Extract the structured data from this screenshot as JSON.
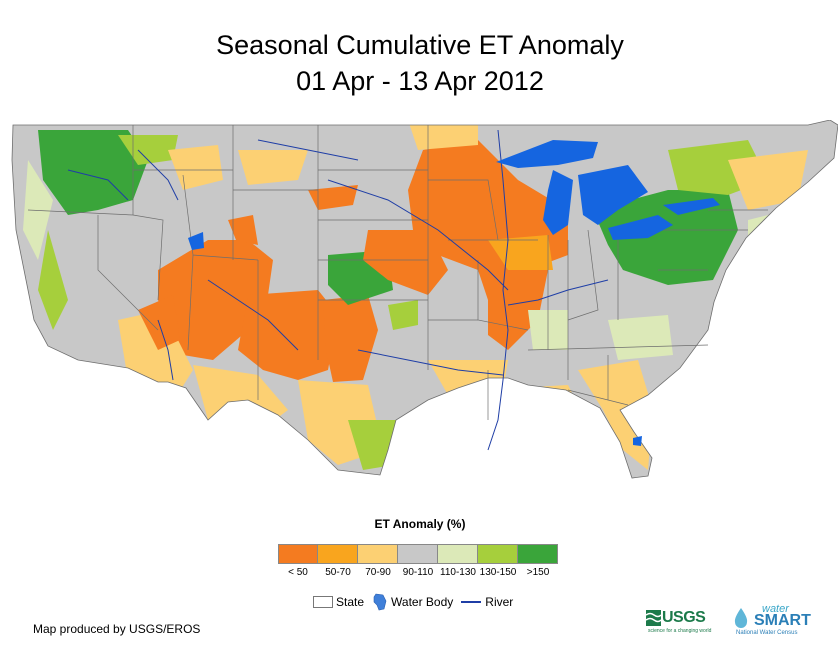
{
  "title": {
    "line1": "Seasonal Cumulative ET Anomaly",
    "line2": "01 Apr - 13 Apr 2012"
  },
  "map": {
    "region": "Conterminous United States",
    "colors": {
      "background": "#c8c8c8",
      "water": "#1565e0",
      "state_line": "#6e6e6e",
      "river": "#1f3ea6",
      "mexico_canada": "#ffffff"
    }
  },
  "legend": {
    "title": "ET Anomaly (%)",
    "classes": [
      {
        "label": "< 50",
        "color": "#f47b20"
      },
      {
        "label": "50-70",
        "color": "#f9a51e"
      },
      {
        "label": "70-90",
        "color": "#fcd073"
      },
      {
        "label": "90-110",
        "color": "#c8c8c8"
      },
      {
        "label": "110-130",
        "color": "#dce9b8"
      },
      {
        "label": "130-150",
        "color": "#a6cf3c"
      },
      {
        "label": ">150",
        "color": "#3aa53a"
      }
    ],
    "keys": {
      "state": "State",
      "water_body": "Water Body",
      "river": "River"
    }
  },
  "credit": "Map produced by USGS/EROS",
  "logos": {
    "usgs": "USGS",
    "usgs_tagline": "science for a changing world",
    "watersmart_top": "water",
    "watersmart_main": "SMART",
    "watersmart_tagline": "National Water Census"
  }
}
